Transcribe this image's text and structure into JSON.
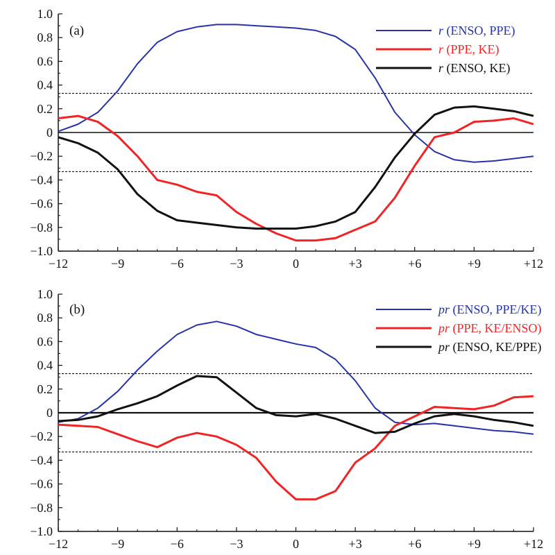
{
  "chart_data": [
    {
      "type": "line",
      "panel_label": "(a)",
      "x": [
        -12,
        -11,
        -10,
        -9,
        -8,
        -7,
        -6,
        -5,
        -4,
        -3,
        -2,
        -1,
        0,
        1,
        2,
        3,
        4,
        5,
        6,
        7,
        8,
        9,
        10,
        11,
        12
      ],
      "xticks": [
        "-12",
        "-9",
        "-6",
        "-3",
        "0",
        "+3",
        "+6",
        "+9",
        "+12"
      ],
      "xtick_values": [
        -12,
        -9,
        -6,
        -3,
        0,
        3,
        6,
        9,
        12
      ],
      "ylim": [
        -1.0,
        1.0
      ],
      "yticks": [
        "-1.0",
        "-0.8",
        "-0.6",
        "-0.4",
        "-0.2",
        "0",
        "0.2",
        "0.4",
        "0.6",
        "0.8",
        "1.0"
      ],
      "ytick_values": [
        -1.0,
        -0.8,
        -0.6,
        -0.4,
        -0.2,
        0,
        0.2,
        0.4,
        0.6,
        0.8,
        1.0
      ],
      "hlines": [
        0.33,
        -0.33
      ],
      "zero_line": true,
      "legend_position": "top-right",
      "series": [
        {
          "name_prefix": "r",
          "name_rest": " (ENSO, PPE)",
          "color": "#2633a8",
          "width": 2,
          "values": [
            0.01,
            0.07,
            0.17,
            0.35,
            0.58,
            0.76,
            0.85,
            0.89,
            0.91,
            0.91,
            0.9,
            0.89,
            0.88,
            0.86,
            0.81,
            0.7,
            0.46,
            0.17,
            -0.02,
            -0.16,
            -0.23,
            -0.25,
            -0.24,
            -0.22,
            -0.2
          ]
        },
        {
          "name_prefix": "r",
          "name_rest": " (PPE, KE)",
          "color": "#f02424",
          "width": 3,
          "values": [
            0.12,
            0.14,
            0.09,
            -0.03,
            -0.2,
            -0.4,
            -0.44,
            -0.5,
            -0.53,
            -0.67,
            -0.77,
            -0.85,
            -0.91,
            -0.91,
            -0.89,
            -0.82,
            -0.75,
            -0.55,
            -0.28,
            -0.04,
            0.0,
            0.09,
            0.1,
            0.12,
            0.07
          ]
        },
        {
          "name_prefix": "r",
          "name_rest": " (ENSO, KE)",
          "color": "#111111",
          "width": 3,
          "values": [
            -0.04,
            -0.09,
            -0.17,
            -0.31,
            -0.52,
            -0.66,
            -0.74,
            -0.76,
            -0.78,
            -0.8,
            -0.81,
            -0.81,
            -0.81,
            -0.79,
            -0.75,
            -0.67,
            -0.46,
            -0.21,
            -0.01,
            0.15,
            0.21,
            0.22,
            0.2,
            0.18,
            0.14
          ]
        }
      ]
    },
    {
      "type": "line",
      "panel_label": "(b)",
      "x": [
        -12,
        -11,
        -10,
        -9,
        -8,
        -7,
        -6,
        -5,
        -4,
        -3,
        -2,
        -1,
        0,
        1,
        2,
        3,
        4,
        5,
        6,
        7,
        8,
        9,
        10,
        11,
        12
      ],
      "xticks": [
        "-12",
        "-9",
        "-6",
        "-3",
        "0",
        "+3",
        "+6",
        "+9",
        "+12"
      ],
      "xtick_values": [
        -12,
        -9,
        -6,
        -3,
        0,
        3,
        6,
        9,
        12
      ],
      "ylim": [
        -1.0,
        1.0
      ],
      "yticks": [
        "-1.0",
        "-0.8",
        "-0.6",
        "-0.4",
        "-0.2",
        "0",
        "0.2",
        "0.4",
        "0.6",
        "0.8",
        "1.0"
      ],
      "ytick_values": [
        -1.0,
        -0.8,
        -0.6,
        -0.4,
        -0.2,
        0,
        0.2,
        0.4,
        0.6,
        0.8,
        1.0
      ],
      "hlines": [
        0.33,
        -0.33
      ],
      "zero_line": true,
      "legend_position": "top-right",
      "series": [
        {
          "name_prefix": "pr",
          "name_rest": " (ENSO, PPE/KE)",
          "color": "#2633a8",
          "width": 2,
          "values": [
            -0.08,
            -0.05,
            0.04,
            0.18,
            0.36,
            0.52,
            0.66,
            0.74,
            0.77,
            0.73,
            0.66,
            0.62,
            0.58,
            0.55,
            0.45,
            0.27,
            0.04,
            -0.08,
            -0.1,
            -0.09,
            -0.11,
            -0.13,
            -0.15,
            -0.16,
            -0.18
          ]
        },
        {
          "name_prefix": "pr",
          "name_rest": " (PPE, KE/ENSO)",
          "color": "#f02424",
          "width": 3,
          "values": [
            -0.1,
            -0.11,
            -0.12,
            -0.18,
            -0.24,
            -0.29,
            -0.21,
            -0.17,
            -0.2,
            -0.27,
            -0.38,
            -0.58,
            -0.73,
            -0.73,
            -0.66,
            -0.42,
            -0.3,
            -0.11,
            -0.03,
            0.05,
            0.04,
            0.03,
            0.06,
            0.13,
            0.14
          ]
        },
        {
          "name_prefix": "pr",
          "name_rest": " (ENSO, KE/PPE)",
          "color": "#111111",
          "width": 3,
          "values": [
            -0.07,
            -0.06,
            -0.03,
            0.03,
            0.08,
            0.14,
            0.23,
            0.31,
            0.3,
            0.17,
            0.04,
            -0.02,
            -0.03,
            -0.01,
            -0.05,
            -0.11,
            -0.17,
            -0.16,
            -0.09,
            -0.03,
            -0.01,
            -0.03,
            -0.06,
            -0.08,
            -0.11
          ]
        }
      ]
    }
  ]
}
